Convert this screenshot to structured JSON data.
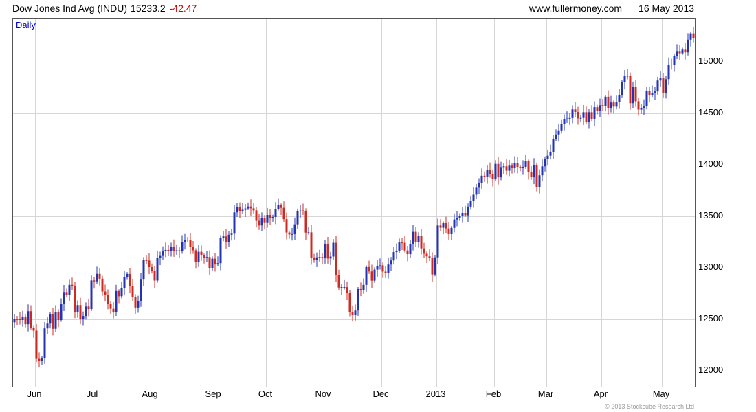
{
  "header": {
    "title": "Dow Jones Ind Avg (INDU)",
    "price": "15233.2",
    "change": "-42.47",
    "site": "www.fullermoney.com",
    "date": "16 May 2013"
  },
  "chart": {
    "interval_label": "Daily",
    "copyright": "© 2013 Stockcube Research Ltd"
  },
  "chart_data": {
    "type": "candlestick",
    "title": "Dow Jones Ind Avg (INDU)",
    "interval": "Daily",
    "last": 15233.2,
    "change": -42.47,
    "ylim": [
      11850,
      15420
    ],
    "y_ticks": [
      12000,
      12500,
      13000,
      13500,
      14000,
      14500,
      15000
    ],
    "x_tick_labels": [
      "Jun",
      "Jul",
      "Aug",
      "Sep",
      "Oct",
      "Nov",
      "Dec",
      "2013",
      "Feb",
      "Mar",
      "Apr",
      "May"
    ],
    "month_start_indices": [
      8,
      29,
      50,
      73,
      92,
      113,
      134,
      154,
      175,
      194,
      214,
      236
    ],
    "grid": true,
    "grid_color": "#d6d6d6",
    "up_color": "#2433b0",
    "down_color": "#cc2b22",
    "n_days": 248,
    "closes": [
      12504,
      12503,
      12496,
      12530,
      12455,
      12581,
      12420,
      12393,
      12119,
      12101,
      12128,
      12415,
      12461,
      12554,
      12411,
      12573,
      12496,
      12652,
      12767,
      12742,
      12837,
      12824,
      12573,
      12641,
      12503,
      12535,
      12627,
      12602,
      12880,
      12871,
      12944,
      12897,
      12772,
      12736,
      12653,
      12605,
      12573,
      12777,
      12727,
      12805,
      12909,
      12943,
      12823,
      12721,
      12617,
      12676,
      12888,
      13076,
      13073,
      13009,
      12971,
      12879,
      13096,
      13118,
      13169,
      13176,
      13165,
      13208,
      13169,
      13172,
      13165,
      13250,
      13275,
      13271,
      13203,
      13172,
      13057,
      13158,
      13125,
      13102,
      13107,
      13001,
      13091,
      13035,
      13047,
      13292,
      13307,
      13254,
      13323,
      13333,
      13540,
      13593,
      13553,
      13565,
      13578,
      13597,
      13579,
      13559,
      13458,
      13413,
      13486,
      13437,
      13515,
      13482,
      13495,
      13575,
      13610,
      13584,
      13474,
      13345,
      13326,
      13329,
      13424,
      13552,
      13557,
      13549,
      13344,
      13346,
      13102,
      13077,
      13104,
      13107,
      13096,
      13232,
      13093,
      13112,
      13245,
      12933,
      12811,
      12815,
      12815,
      12757,
      12571,
      12542,
      12588,
      12796,
      12789,
      12837,
      13010,
      12967,
      12878,
      12985,
      13022,
      13026,
      12966,
      12952,
      13034,
      13074,
      13155,
      13169,
      13248,
      13245,
      13171,
      13135,
      13235,
      13351,
      13252,
      13312,
      13191,
      13139,
      13114,
      13096,
      12938,
      13104,
      13413,
      13391,
      13435,
      13384,
      13329,
      13390,
      13471,
      13488,
      13507,
      13535,
      13511,
      13596,
      13650,
      13712,
      13779,
      13825,
      13896,
      13882,
      13954,
      13910,
      13861,
      14010,
      13880,
      13979,
      13986,
      13944,
      13993,
      13971,
      14019,
      13982,
      13973,
      13982,
      14036,
      13928,
      13881,
      14001,
      13784,
      13900,
      13986,
      14055,
      14090,
      14128,
      14254,
      14296,
      14329,
      14397,
      14447,
      14450,
      14455,
      14539,
      14514,
      14452,
      14456,
      14512,
      14421,
      14512,
      14448,
      14560,
      14526,
      14579,
      14573,
      14662,
      14550,
      14606,
      14565,
      14613,
      14674,
      14802,
      14865,
      14865,
      14599,
      14757,
      14618,
      14537,
      14548,
      14567,
      14719,
      14676,
      14701,
      14713,
      14819,
      14840,
      14701,
      14832,
      14974,
      14969,
      15056,
      15105,
      15083,
      15118,
      15092,
      15215,
      15276,
      15233
    ]
  }
}
